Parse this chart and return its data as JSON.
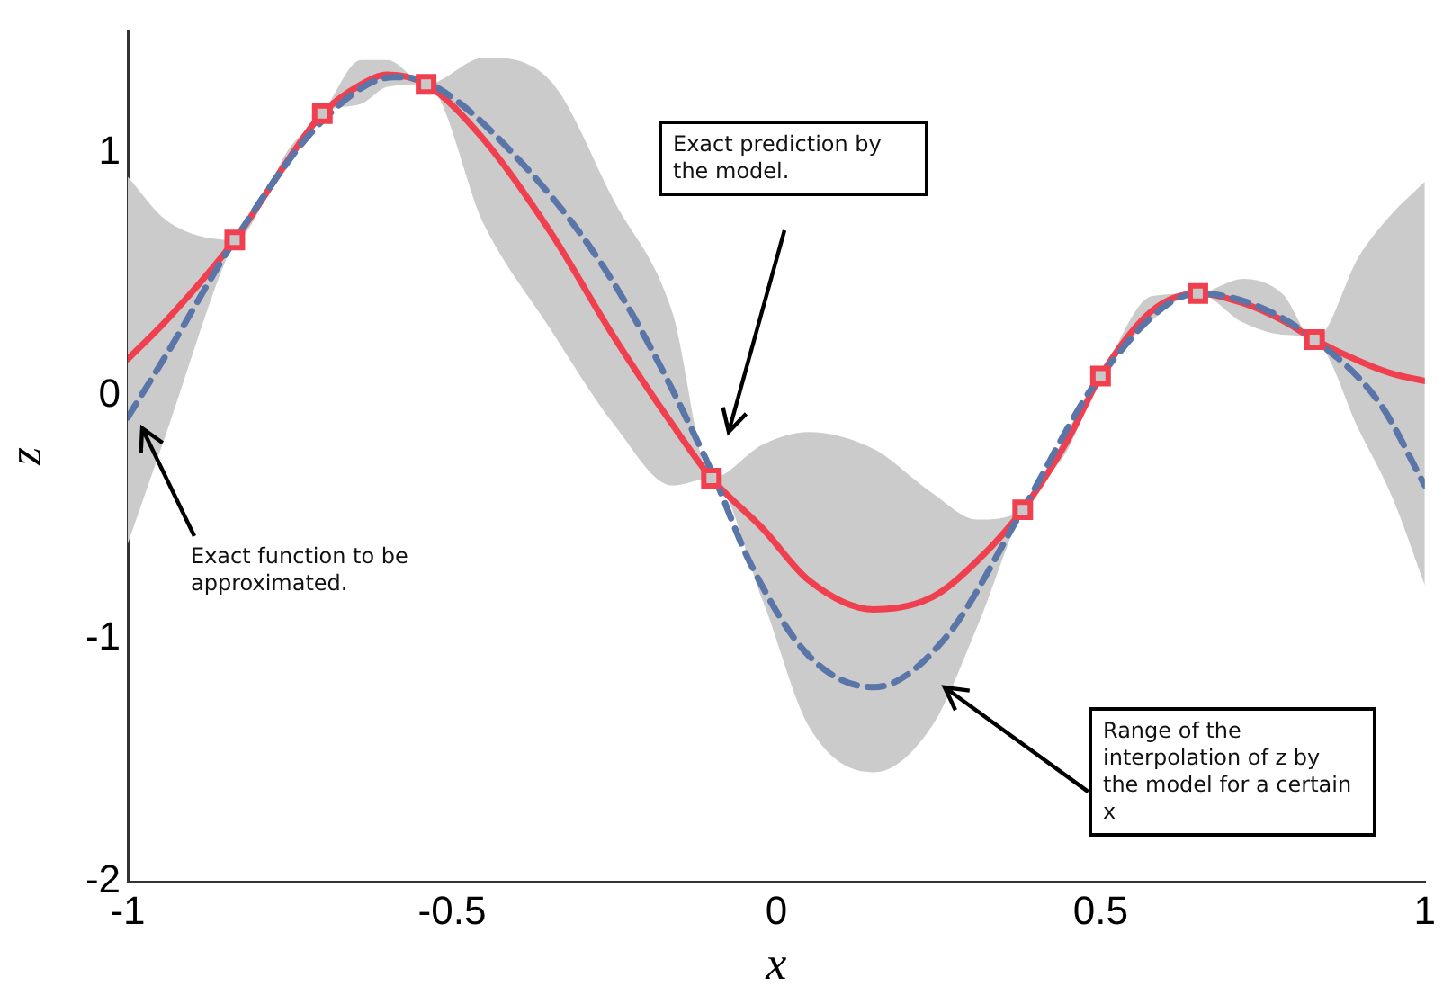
{
  "chart_data": {
    "type": "line",
    "xlabel": "x",
    "ylabel": "z",
    "xlim": [
      -1,
      1
    ],
    "ylim": [
      -2,
      1.5
    ],
    "xticks": [
      -1,
      -0.5,
      0,
      0.5,
      1
    ],
    "yticks": [
      -2,
      -1,
      0,
      1
    ],
    "grid": false,
    "series": [
      {
        "type": "line",
        "color": "#5a75a8",
        "line_style": "dashed",
        "marker": "none",
        "x": [
          -1,
          -0.94,
          -0.835,
          -0.7,
          -0.59,
          -0.54,
          -0.39,
          -0.25,
          -0.1,
          -0.04,
          0.05,
          0.15,
          0.26,
          0.38,
          0.5,
          0.65,
          0.74,
          0.83,
          0.93,
          1
        ],
        "values": [
          -0.09,
          0.17,
          0.64,
          1.13,
          1.31,
          1.29,
          0.95,
          0.46,
          -0.31,
          -0.69,
          -1.07,
          -1.2,
          -1,
          -0.47,
          0.08,
          0.42,
          0.37,
          0.23,
          -0.03,
          -0.37
        ]
      },
      {
        "type": "line",
        "color": "#f0404f",
        "line_style": "solid",
        "marker": "none",
        "x": [
          -1,
          -0.94,
          -0.835,
          -0.75,
          -0.7,
          -0.64,
          -0.6,
          -0.54,
          -0.45,
          -0.35,
          -0.25,
          -0.16,
          -0.1,
          -0.02,
          0.05,
          0.15,
          0.24,
          0.31,
          0.38,
          0.45,
          0.5,
          0.58,
          0.65,
          0.72,
          0.78,
          0.83,
          0.9,
          0.95,
          1
        ],
        "values": [
          0.15,
          0.31,
          0.64,
          0.98,
          1.16,
          1.28,
          1.32,
          1.28,
          1.05,
          0.68,
          0.24,
          -0.12,
          -0.34,
          -0.55,
          -0.76,
          -0.88,
          -0.83,
          -0.68,
          -0.47,
          -0.18,
          0.08,
          0.35,
          0.42,
          0.38,
          0.31,
          0.23,
          0.14,
          0.09,
          0.06
        ],
        "lower": [
          -0.61,
          -0.15,
          0.64,
          0.95,
          1.16,
          1.2,
          1.27,
          1.28,
          0.7,
          0.28,
          -0.12,
          -0.37,
          -0.34,
          -0.85,
          -1.36,
          -1.55,
          -1.36,
          -0.95,
          -0.47,
          -0.22,
          0.08,
          0.31,
          0.42,
          0.3,
          0.25,
          0.23,
          -0.15,
          -0.42,
          -0.78
        ],
        "upper": [
          0.9,
          0.72,
          0.64,
          1.02,
          1.16,
          1.38,
          1.38,
          1.28,
          1.39,
          1.3,
          0.8,
          0.34,
          -0.34,
          -0.2,
          -0.15,
          -0.22,
          -0.4,
          -0.51,
          -0.47,
          -0.14,
          0.08,
          0.41,
          0.42,
          0.48,
          0.42,
          0.23,
          0.58,
          0.75,
          0.88
        ]
      },
      {
        "type": "scatter",
        "color": "#f0404f",
        "marker": "square",
        "x": [
          -0.835,
          -0.7,
          -0.54,
          -0.1,
          0.38,
          0.5,
          0.65,
          0.83
        ],
        "values": [
          0.64,
          1.16,
          1.28,
          -0.34,
          -0.47,
          0.08,
          0.42,
          0.23
        ]
      }
    ],
    "annotations": [
      "Exact function to be approximated.",
      "Exact prediction by the model.",
      {
        "text": "Range of the interpolation of z by the model for a certain x",
        "x": 0.26,
        "y": -1.2
      }
    ]
  }
}
